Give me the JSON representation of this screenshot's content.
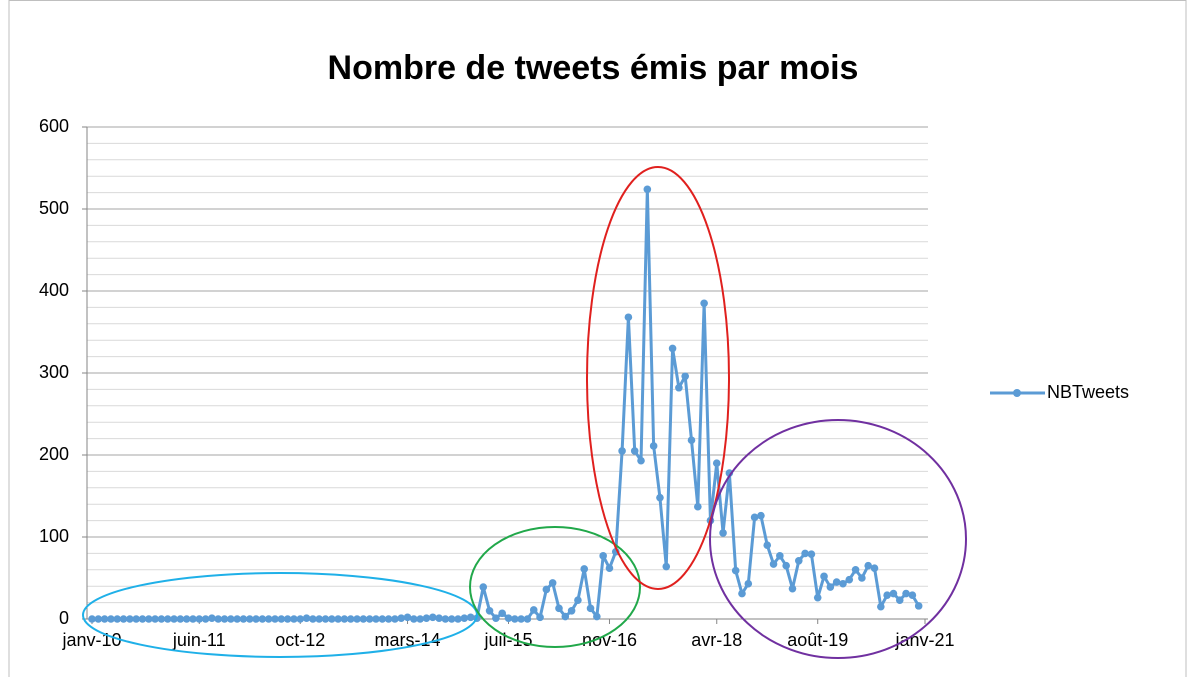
{
  "chart_data": {
    "type": "line",
    "title": "Nombre de tweets émis par mois",
    "categories": [
      "janv-10",
      null,
      null,
      null,
      null,
      null,
      null,
      null,
      null,
      null,
      null,
      null,
      null,
      null,
      null,
      null,
      null,
      "juin-11",
      null,
      null,
      null,
      null,
      null,
      null,
      null,
      null,
      null,
      null,
      null,
      null,
      null,
      null,
      null,
      "oct-12",
      null,
      null,
      null,
      null,
      null,
      null,
      null,
      null,
      null,
      null,
      null,
      null,
      null,
      null,
      null,
      null,
      "mars-14",
      null,
      null,
      null,
      null,
      null,
      null,
      null,
      null,
      null,
      null,
      null,
      null,
      null,
      null,
      null,
      "juil-15",
      null,
      null,
      null,
      null,
      null,
      null,
      null,
      null,
      null,
      null,
      null,
      null,
      null,
      null,
      null,
      "nov-16",
      null,
      null,
      null,
      null,
      null,
      null,
      null,
      null,
      null,
      null,
      null,
      null,
      null,
      null,
      null,
      null,
      "avr-18",
      null,
      null,
      null,
      null,
      null,
      null,
      null,
      null,
      null,
      null,
      null,
      null,
      null,
      null,
      null,
      "août-19",
      null,
      null,
      null,
      null,
      null,
      null,
      null,
      null,
      null,
      null,
      null,
      null,
      null,
      null,
      null,
      null,
      "janv-21"
    ],
    "series": [
      {
        "name": "NBTweets",
        "color": "#5b9bd5",
        "values": [
          0,
          0,
          0,
          0,
          0,
          0,
          0,
          0,
          0,
          0,
          0,
          0,
          0,
          0,
          0,
          0,
          0,
          0,
          0,
          1,
          0,
          0,
          0,
          0,
          0,
          0,
          0,
          0,
          0,
          0,
          0,
          0,
          0,
          0,
          1,
          0,
          0,
          0,
          0,
          0,
          0,
          0,
          0,
          0,
          0,
          0,
          0,
          0,
          0,
          1,
          2,
          0,
          0,
          1,
          2,
          1,
          0,
          0,
          0,
          1,
          2,
          1,
          39,
          10,
          1,
          7,
          1,
          0,
          0,
          0,
          11,
          2,
          36,
          44,
          13,
          3,
          10,
          23,
          61,
          13,
          3,
          77,
          62,
          82,
          205,
          368,
          205,
          193,
          524,
          211,
          148,
          64,
          330,
          282,
          296,
          218,
          137,
          385,
          120,
          190,
          105,
          178,
          59,
          31,
          43,
          124,
          126,
          90,
          67,
          77,
          65,
          37,
          71,
          80,
          79,
          26,
          52,
          39,
          45,
          43,
          48,
          60,
          50,
          65,
          62,
          15,
          29,
          31,
          23,
          31,
          29,
          16,
          null
        ]
      }
    ],
    "ylim": [
      0,
      600
    ],
    "yticks": [
      0,
      100,
      200,
      300,
      400,
      500,
      600
    ],
    "minor_yticks": [
      20,
      40,
      60,
      80,
      120,
      140,
      160,
      180,
      220,
      240,
      260,
      280,
      320,
      340,
      360,
      380,
      420,
      440,
      460,
      480,
      520,
      540,
      560,
      580
    ],
    "grid": true,
    "legend": "right"
  }
}
